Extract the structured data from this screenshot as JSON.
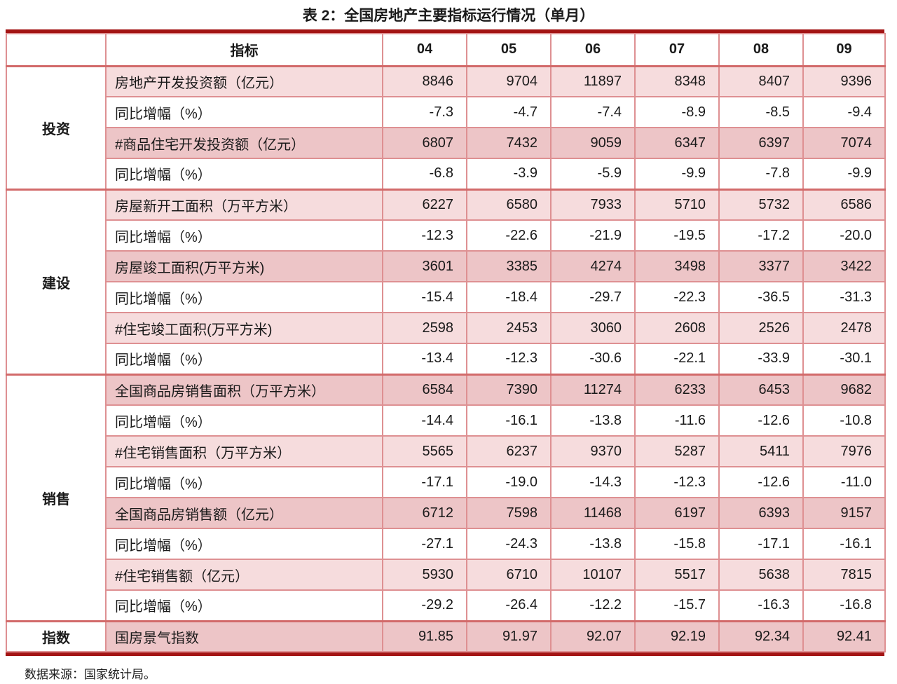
{
  "title": "表 2：全国房地产主要指标运行情况（单月）",
  "footnote": "数据来源：国家统计局。",
  "colors": {
    "outer_border": "#a31414",
    "cell_border": "#de9092",
    "section_separator": "#d26a6a",
    "row_pink_light": "#f6dcdd",
    "row_pink_dark": "#edc5c7",
    "text": "#1a1a1a"
  },
  "table": {
    "corner_label": "",
    "header": [
      "指标",
      "04",
      "05",
      "06",
      "07",
      "08",
      "09"
    ],
    "sections": [
      {
        "group": "投资",
        "rows": [
          {
            "label": "房地产开发投资额（亿元）",
            "shade": "light",
            "values": [
              "8846",
              "9704",
              "11897",
              "8348",
              "8407",
              "9396"
            ]
          },
          {
            "label": "同比增幅（%）",
            "shade": "white",
            "values": [
              "-7.3",
              "-4.7",
              "-7.4",
              "-8.9",
              "-8.5",
              "-9.4"
            ]
          },
          {
            "label": "#商品住宅开发投资额（亿元）",
            "shade": "dark",
            "values": [
              "6807",
              "7432",
              "9059",
              "6347",
              "6397",
              "7074"
            ]
          },
          {
            "label": "同比增幅（%）",
            "shade": "white",
            "values": [
              "-6.8",
              "-3.9",
              "-5.9",
              "-9.9",
              "-7.8",
              "-9.9"
            ]
          }
        ]
      },
      {
        "group": "建设",
        "rows": [
          {
            "label": "房屋新开工面积（万平方米）",
            "shade": "light",
            "values": [
              "6227",
              "6580",
              "7933",
              "5710",
              "5732",
              "6586"
            ]
          },
          {
            "label": "同比增幅（%）",
            "shade": "white",
            "values": [
              "-12.3",
              "-22.6",
              "-21.9",
              "-19.5",
              "-17.2",
              "-20.0"
            ]
          },
          {
            "label": "房屋竣工面积(万平方米)",
            "shade": "dark",
            "values": [
              "3601",
              "3385",
              "4274",
              "3498",
              "3377",
              "3422"
            ]
          },
          {
            "label": "同比增幅（%）",
            "shade": "white",
            "values": [
              "-15.4",
              "-18.4",
              "-29.7",
              "-22.3",
              "-36.5",
              "-31.3"
            ]
          },
          {
            "label": "#住宅竣工面积(万平方米)",
            "shade": "light",
            "values": [
              "2598",
              "2453",
              "3060",
              "2608",
              "2526",
              "2478"
            ]
          },
          {
            "label": "同比增幅（%）",
            "shade": "white",
            "values": [
              "-13.4",
              "-12.3",
              "-30.6",
              "-22.1",
              "-33.9",
              "-30.1"
            ]
          }
        ]
      },
      {
        "group": "销售",
        "rows": [
          {
            "label": "全国商品房销售面积（万平方米）",
            "shade": "dark",
            "values": [
              "6584",
              "7390",
              "11274",
              "6233",
              "6453",
              "9682"
            ]
          },
          {
            "label": "同比增幅（%）",
            "shade": "white",
            "values": [
              "-14.4",
              "-16.1",
              "-13.8",
              "-11.6",
              "-12.6",
              "-10.8"
            ]
          },
          {
            "label": "#住宅销售面积（万平方米）",
            "shade": "light",
            "values": [
              "5565",
              "6237",
              "9370",
              "5287",
              "5411",
              "7976"
            ]
          },
          {
            "label": "同比增幅（%）",
            "shade": "white",
            "values": [
              "-17.1",
              "-19.0",
              "-14.3",
              "-12.3",
              "-12.6",
              "-11.0"
            ]
          },
          {
            "label": "全国商品房销售额（亿元）",
            "shade": "dark",
            "values": [
              "6712",
              "7598",
              "11468",
              "6197",
              "6393",
              "9157"
            ]
          },
          {
            "label": "同比增幅（%）",
            "shade": "white",
            "values": [
              "-27.1",
              "-24.3",
              "-13.8",
              "-15.8",
              "-17.1",
              "-16.1"
            ]
          },
          {
            "label": "#住宅销售额（亿元）",
            "shade": "light",
            "values": [
              "5930",
              "6710",
              "10107",
              "5517",
              "5638",
              "7815"
            ]
          },
          {
            "label": "同比增幅（%）",
            "shade": "white",
            "values": [
              "-29.2",
              "-26.4",
              "-12.2",
              "-15.7",
              "-16.3",
              "-16.8"
            ]
          }
        ]
      },
      {
        "group": "指数",
        "rows": [
          {
            "label": "国房景气指数",
            "shade": "dark",
            "values": [
              "91.85",
              "91.97",
              "92.07",
              "92.19",
              "92.34",
              "92.41"
            ]
          }
        ]
      }
    ]
  }
}
